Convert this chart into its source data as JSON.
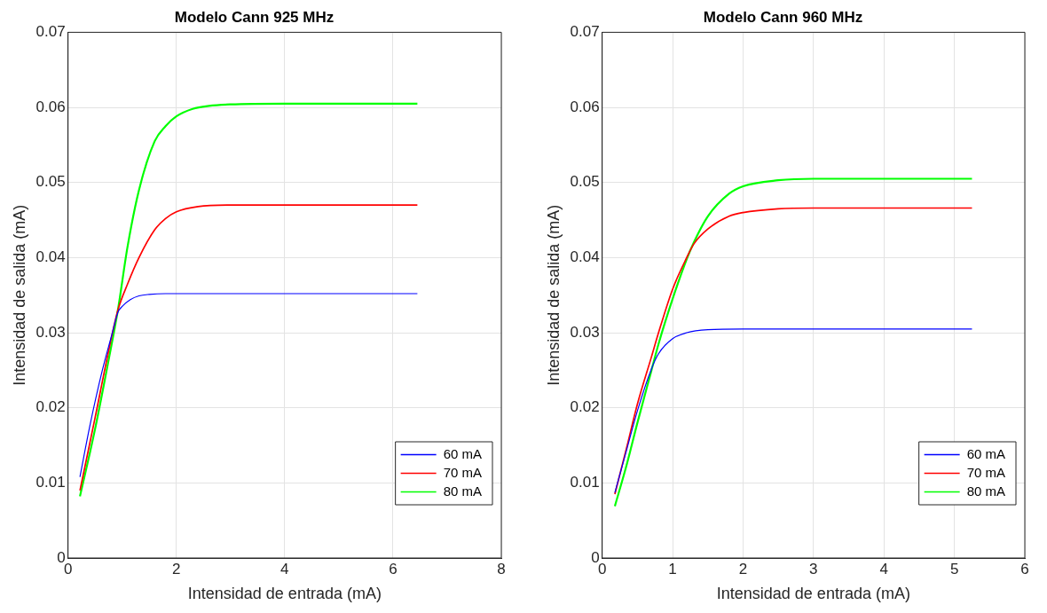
{
  "chart_data": [
    {
      "type": "line",
      "title": "Modelo Cann 925 MHz",
      "xlabel": "Intensidad de entrada (mA)",
      "ylabel": "Intensidad de salida (mA)",
      "xlim": [
        0,
        8
      ],
      "xticks": [
        0,
        2,
        4,
        6,
        8
      ],
      "ylim": [
        0,
        0.07
      ],
      "yticks": [
        0,
        0.01,
        0.02,
        0.03,
        0.04,
        0.05,
        0.06,
        0.07
      ],
      "grid": true,
      "legend": "bottom right",
      "marker": "none",
      "line_style": "solid",
      "series": [
        {
          "name": "60 mA",
          "color": "#0000ff",
          "x": [
            0.22,
            0.4,
            0.63,
            0.8,
            0.92,
            1.0,
            1.15,
            1.31,
            1.5,
            1.8,
            2.0,
            3.0,
            6.45
          ],
          "values": [
            0.0108,
            0.0175,
            0.0249,
            0.0295,
            0.0327,
            0.0335,
            0.0344,
            0.0349,
            0.0351,
            0.0352,
            0.0352,
            0.0352,
            0.0352
          ]
        },
        {
          "name": "70 mA",
          "color": "#ff0000",
          "x": [
            0.22,
            0.5,
            0.75,
            0.92,
            1.1,
            1.31,
            1.6,
            1.8,
            2.0,
            2.4,
            3.0,
            4.0,
            6.45
          ],
          "values": [
            0.009,
            0.0187,
            0.0276,
            0.033,
            0.0365,
            0.04,
            0.0437,
            0.0452,
            0.0461,
            0.0468,
            0.047,
            0.047,
            0.047
          ]
        },
        {
          "name": "80 mA",
          "color": "#00ff00",
          "x": [
            0.22,
            0.5,
            0.75,
            0.92,
            1.1,
            1.31,
            1.6,
            1.8,
            2.0,
            2.3,
            2.6,
            3.0,
            4.0,
            6.45
          ],
          "values": [
            0.0082,
            0.0172,
            0.0264,
            0.033,
            0.0415,
            0.049,
            0.0555,
            0.0575,
            0.0588,
            0.0598,
            0.0602,
            0.0604,
            0.0605,
            0.0605
          ]
        }
      ]
    },
    {
      "type": "line",
      "title": "Modelo Cann 960 MHz",
      "xlabel": "Intensidad de entrada (mA)",
      "ylabel": "Intensidad de salida (mA)",
      "xlim": [
        0,
        6
      ],
      "xticks": [
        0,
        1,
        2,
        3,
        4,
        5,
        6
      ],
      "ylim": [
        0,
        0.07
      ],
      "yticks": [
        0,
        0.01,
        0.02,
        0.03,
        0.04,
        0.05,
        0.06,
        0.07
      ],
      "grid": true,
      "legend": "bottom right",
      "marker": "none",
      "line_style": "solid",
      "series": [
        {
          "name": "60 mA",
          "color": "#0000ff",
          "x": [
            0.18,
            0.35,
            0.5,
            0.7,
            0.8,
            1.0,
            1.2,
            1.5,
            2.0,
            3.0,
            5.25
          ],
          "values": [
            0.0087,
            0.0145,
            0.0196,
            0.0252,
            0.0272,
            0.0292,
            0.03,
            0.0304,
            0.0305,
            0.0305,
            0.0305
          ]
        },
        {
          "name": "70 mA",
          "color": "#ff0000",
          "x": [
            0.18,
            0.35,
            0.5,
            0.7,
            0.8,
            1.0,
            1.2,
            1.3,
            1.5,
            1.8,
            2.0,
            2.5,
            3.0,
            5.25
          ],
          "values": [
            0.0085,
            0.0148,
            0.0205,
            0.0268,
            0.03,
            0.0358,
            0.04,
            0.0418,
            0.0438,
            0.0455,
            0.046,
            0.0465,
            0.0466,
            0.0466
          ]
        },
        {
          "name": "80 mA",
          "color": "#00ff00",
          "x": [
            0.18,
            0.35,
            0.5,
            0.7,
            0.8,
            1.0,
            1.2,
            1.3,
            1.5,
            1.8,
            2.0,
            2.5,
            3.0,
            5.25
          ],
          "values": [
            0.0069,
            0.0125,
            0.018,
            0.025,
            0.0285,
            0.0345,
            0.0398,
            0.042,
            0.0455,
            0.0485,
            0.0495,
            0.0503,
            0.0505,
            0.0505
          ]
        }
      ]
    }
  ]
}
